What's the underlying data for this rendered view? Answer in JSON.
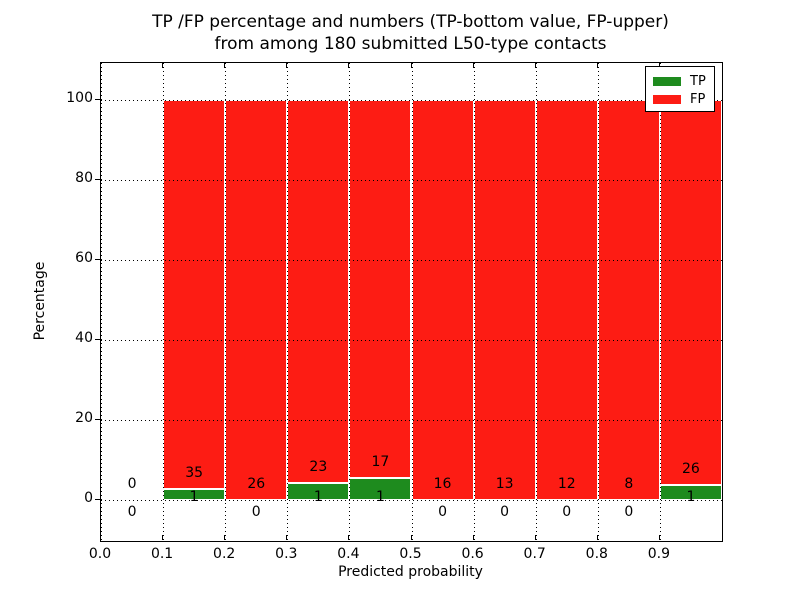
{
  "figure": {
    "title_line1": "TP /FP percentage and numbers (TP-bottom value, FP-upper)",
    "title_line2": "from among 180 submitted L50-type contacts",
    "xlabel": "Predicted probability",
    "ylabel": "Percentage"
  },
  "chart_data": {
    "type": "bar",
    "stacked": true,
    "title": "TP /FP percentage and numbers (TP-bottom value, FP-upper) from among 180 submitted L50-type contacts",
    "xlabel": "Predicted probability",
    "ylabel": "Percentage",
    "xlim": [
      0.0,
      1.0
    ],
    "ylim": [
      -10,
      110
    ],
    "grid": true,
    "grid_style": "dotted",
    "legend_position": "upper right",
    "colors": {
      "tp": "#1e8b1e",
      "fp": "#fd1c14",
      "grid": "#000000",
      "bar_edge": "#ffffff"
    },
    "series": [
      {
        "name": "TP",
        "color": "#1e8b1e",
        "counts": [
          0,
          1,
          0,
          1,
          1,
          0,
          0,
          0,
          0,
          1
        ],
        "pct": [
          0,
          2.78,
          0,
          4.17,
          5.56,
          0,
          0,
          0,
          0,
          3.7
        ]
      },
      {
        "name": "FP",
        "color": "#fd1c14",
        "counts": [
          0,
          35,
          26,
          23,
          17,
          16,
          13,
          12,
          8,
          26
        ],
        "pct": [
          0,
          97.22,
          100,
          95.83,
          94.44,
          100,
          100,
          100,
          100,
          96.3
        ]
      }
    ],
    "bins": [
      {
        "start": 0.0,
        "end": 0.1,
        "tp": 0,
        "fp": 0
      },
      {
        "start": 0.1,
        "end": 0.2,
        "tp": 1,
        "fp": 35
      },
      {
        "start": 0.2,
        "end": 0.3,
        "tp": 0,
        "fp": 26
      },
      {
        "start": 0.3,
        "end": 0.4,
        "tp": 1,
        "fp": 23
      },
      {
        "start": 0.4,
        "end": 0.5,
        "tp": 1,
        "fp": 17
      },
      {
        "start": 0.5,
        "end": 0.6,
        "tp": 0,
        "fp": 16
      },
      {
        "start": 0.6,
        "end": 0.7,
        "tp": 0,
        "fp": 13
      },
      {
        "start": 0.7,
        "end": 0.8,
        "tp": 0,
        "fp": 12
      },
      {
        "start": 0.8,
        "end": 0.9,
        "tp": 0,
        "fp": 8
      },
      {
        "start": 0.9,
        "end": 1.0,
        "tp": 1,
        "fp": 26
      }
    ],
    "x_ticks": [
      {
        "v": 0.0,
        "label": "0.0"
      },
      {
        "v": 0.1,
        "label": "0.1"
      },
      {
        "v": 0.2,
        "label": "0.2"
      },
      {
        "v": 0.3,
        "label": "0.3"
      },
      {
        "v": 0.4,
        "label": "0.4"
      },
      {
        "v": 0.5,
        "label": "0.5"
      },
      {
        "v": 0.6,
        "label": "0.6"
      },
      {
        "v": 0.7,
        "label": "0.7"
      },
      {
        "v": 0.8,
        "label": "0.8"
      },
      {
        "v": 0.9,
        "label": "0.9"
      }
    ],
    "y_ticks": [
      {
        "v": 0,
        "label": "0"
      },
      {
        "v": 20,
        "label": "20"
      },
      {
        "v": 40,
        "label": "40"
      },
      {
        "v": 60,
        "label": "60"
      },
      {
        "v": 80,
        "label": "80"
      },
      {
        "v": 100,
        "label": "100"
      }
    ],
    "legend": [
      {
        "label": "TP",
        "color": "#1e8b1e"
      },
      {
        "label": "FP",
        "color": "#fd1c14"
      }
    ]
  }
}
